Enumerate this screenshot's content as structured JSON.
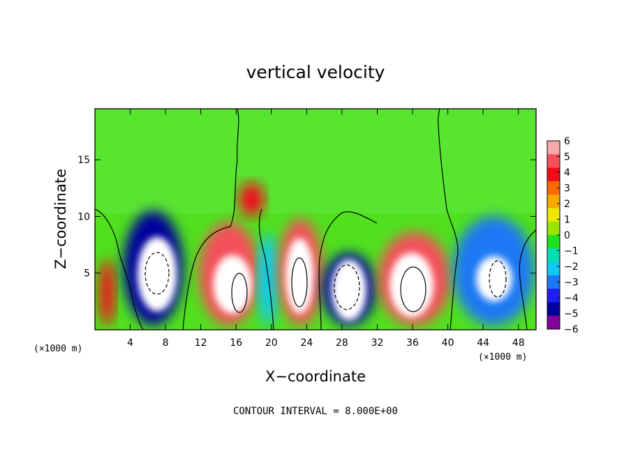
{
  "chart_data": {
    "type": "heatmap",
    "title": "vertical velocity",
    "xlabel": "X−coordinate",
    "ylabel": "Z−coordinate",
    "x_unit_left": "(×1000 m)",
    "x_unit_right": "(×1000 m)",
    "xlim": [
      0,
      50
    ],
    "ylim": [
      0,
      19.5
    ],
    "x_ticks": [
      4,
      8,
      12,
      16,
      20,
      24,
      28,
      32,
      36,
      40,
      44,
      48
    ],
    "x_tick_labels": [
      "4",
      "8",
      "12",
      "16",
      "20",
      "24",
      "28",
      "32",
      "36",
      "40",
      "44",
      "48"
    ],
    "y_ticks": [
      5,
      10,
      15
    ],
    "y_tick_labels": [
      "5",
      "10",
      "15"
    ],
    "colorbar": {
      "ticks": [
        6,
        5,
        4,
        3,
        2,
        1,
        0,
        -1,
        -2,
        -3,
        -4,
        -5,
        -6
      ],
      "tick_labels": [
        "6",
        "5",
        "4",
        "3",
        "2",
        "1",
        "0",
        "−1",
        "−2",
        "−3",
        "−4",
        "−5",
        "−6"
      ],
      "colors": [
        "#f7a8a8",
        "#f44f5a",
        "#f20c1a",
        "#fa6a00",
        "#f8a800",
        "#ece800",
        "#98e600",
        "#20e020",
        "#00dcb4",
        "#10c8f0",
        "#1c78f4",
        "#1e1ef0",
        "#00009c",
        "#800098"
      ],
      "range": [
        -6,
        6
      ]
    },
    "cells": [
      {
        "x": [
          0.5,
          2.3
        ],
        "z": [
          0.4,
          6.2
        ],
        "w": 4.2
      },
      {
        "x": [
          3.2,
          10
        ],
        "z": [
          0.4,
          10.5
        ],
        "w": -4.6
      },
      {
        "x": [
          4.8,
          9.3
        ],
        "z": [
          1.6,
          8.2
        ],
        "w": -7
      },
      {
        "x": [
          11.8,
          18.6
        ],
        "z": [
          0.4,
          9.5
        ],
        "w": 4.5
      },
      {
        "x": [
          13.4,
          17.8
        ],
        "z": [
          1.4,
          6.6
        ],
        "w": 7
      },
      {
        "x": [
          16.3,
          19.2
        ],
        "z": [
          10,
          13
        ],
        "w": 3.8
      },
      {
        "x": [
          18.5,
          20.8
        ],
        "z": [
          0.4,
          8.5
        ],
        "w": -2.4
      },
      {
        "x": [
          20.8,
          25.8
        ],
        "z": [
          0.4,
          9.8
        ],
        "w": 4.6
      },
      {
        "x": [
          21.6,
          24.8
        ],
        "z": [
          1.4,
          8.1
        ],
        "w": 7
      },
      {
        "x": [
          25.8,
          31.8
        ],
        "z": [
          0.4,
          6.8
        ],
        "w": -4.6
      },
      {
        "x": [
          26.8,
          30.8
        ],
        "z": [
          0.8,
          6.2
        ],
        "w": -7
      },
      {
        "x": [
          32.1,
          40.3
        ],
        "z": [
          0.4,
          8.6
        ],
        "w": 4.6
      },
      {
        "x": [
          33.4,
          38.4
        ],
        "z": [
          1.1,
          6.8
        ],
        "w": 7
      },
      {
        "x": [
          40.6,
          49.8
        ],
        "z": [
          0.4,
          10
        ],
        "w": -3.4
      },
      {
        "x": [
          43.2,
          47.3
        ],
        "z": [
          2.5,
          6.5
        ],
        "w": -7
      }
    ]
  },
  "footer": {
    "contour_interval": "CONTOUR INTERVAL = 8.000E+00"
  }
}
